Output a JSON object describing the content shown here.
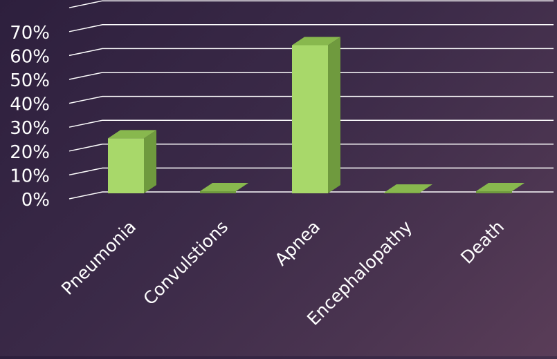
{
  "chart_data": {
    "type": "bar",
    "categories": [
      "Pneumonia",
      "Convulstions",
      "Apnea",
      "Encephalopathy",
      "Death"
    ],
    "values": [
      23,
      0.5,
      62,
      0,
      0.5
    ],
    "yticks": [
      "0%",
      "10%",
      "20%",
      "30%",
      "40%",
      "50%",
      "60%",
      "70%"
    ],
    "ylim": [
      0,
      80
    ],
    "grid": true,
    "three_d": true,
    "colors": {
      "bar_front": "#a8d86a",
      "bar_top": "#88b84e",
      "bar_side": "#6f9a3e",
      "grid": "#ffffff",
      "text": "#ffffff"
    }
  }
}
